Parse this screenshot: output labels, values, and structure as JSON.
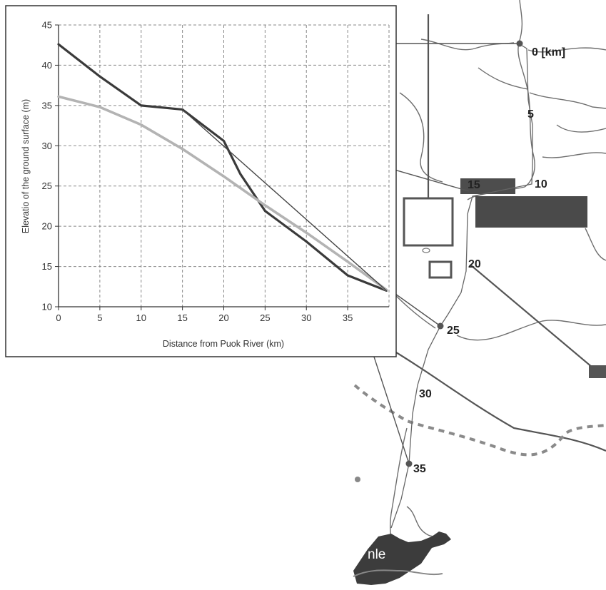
{
  "chart_data": {
    "type": "line",
    "xlabel": "Distance from Puok River (km)",
    "ylabel": "Elevatio of the ground surface (m)",
    "xlim": [
      0,
      40
    ],
    "ylim": [
      10,
      45
    ],
    "xticks": [
      0,
      5,
      10,
      15,
      20,
      25,
      30,
      35
    ],
    "yticks": [
      10,
      15,
      20,
      25,
      30,
      35,
      40,
      45
    ],
    "grid": true,
    "series": [
      {
        "color": "#3a3a3a",
        "x": [
          0,
          5,
          10,
          15,
          20,
          22,
          25,
          30,
          35,
          39.7
        ],
        "y": [
          42.6,
          38.6,
          35.0,
          34.5,
          30.6,
          26.5,
          21.9,
          18.1,
          13.9,
          12.0
        ]
      },
      {
        "color": "#b3b3b3",
        "x": [
          0,
          5,
          10,
          15,
          20,
          25,
          30,
          35,
          39.7
        ],
        "y": [
          36.1,
          34.8,
          32.6,
          29.6,
          26.2,
          22.6,
          19.2,
          15.6,
          12.1
        ]
      },
      {
        "color": "#444444",
        "x": [
          15,
          39.7
        ],
        "y": [
          34.5,
          12.0
        ]
      }
    ]
  },
  "map": {
    "km_labels": [
      "0 [km]",
      "5",
      "10",
      "15",
      "20",
      "25",
      "30",
      "35"
    ],
    "lake_label": "nle"
  }
}
